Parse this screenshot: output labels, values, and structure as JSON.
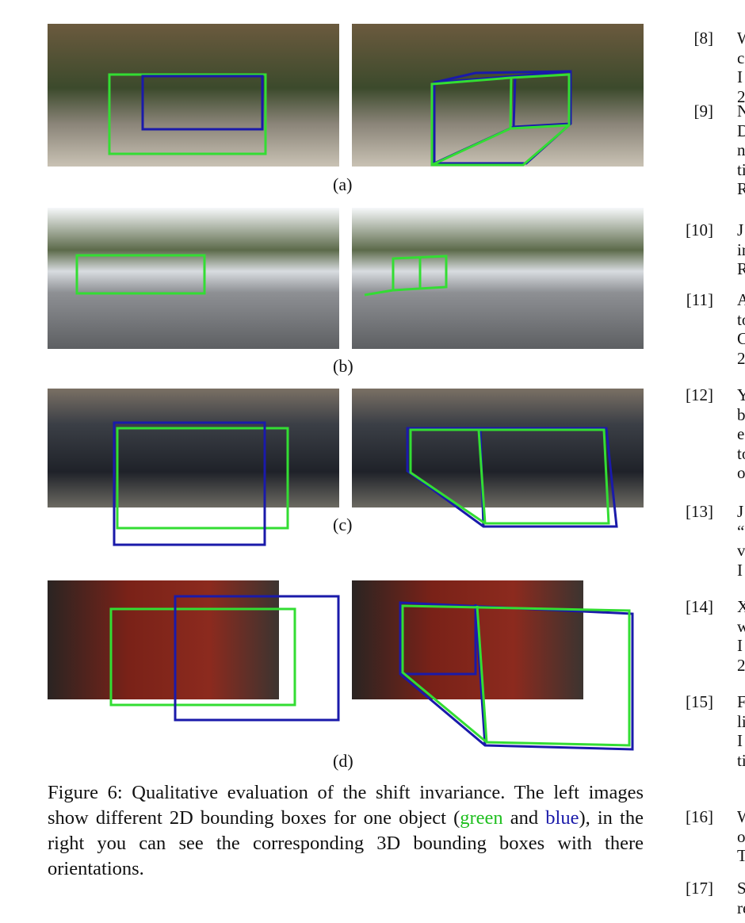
{
  "figure": {
    "subcaptions": [
      "(a)",
      "(b)",
      "(c)",
      "(d)"
    ],
    "caption": {
      "before": "Figure 6: Qualitative evaluation of the shift invariance. The left images show different 2D bounding boxes for one object (",
      "green": "green",
      "middle": " and ",
      "blue": "blue",
      "after": "), in the right you can see the corresponding 3D bounding boxes with there orientations."
    }
  },
  "references": [
    {
      "label": "[8]",
      "lines": [
        "W",
        "c",
        "I",
        "2"
      ]
    },
    {
      "label": "[9]",
      "lines": [
        "N",
        "D",
        "n",
        "ti",
        "R"
      ]
    },
    {
      "label": "[10]",
      "lines": [
        "J",
        "in",
        "R"
      ]
    },
    {
      "label": "[11]",
      "lines": [
        "A",
        "to",
        "C",
        "2"
      ]
    },
    {
      "label": "[12]",
      "lines": [
        "Y",
        "b",
        "e",
        "to",
        "o"
      ]
    },
    {
      "label": "[13]",
      "lines": [
        "J",
        "“",
        "v",
        "I"
      ]
    },
    {
      "label": "[14]",
      "lines": [
        "X",
        "w",
        "I",
        "2"
      ]
    },
    {
      "label": "[15]",
      "lines": [
        "F",
        "li",
        "I",
        "ti"
      ]
    },
    {
      "label": "[16]",
      "lines": [
        "W",
        "o",
        "T"
      ]
    },
    {
      "label": "[17]",
      "lines": [
        "S",
        "re"
      ]
    }
  ]
}
